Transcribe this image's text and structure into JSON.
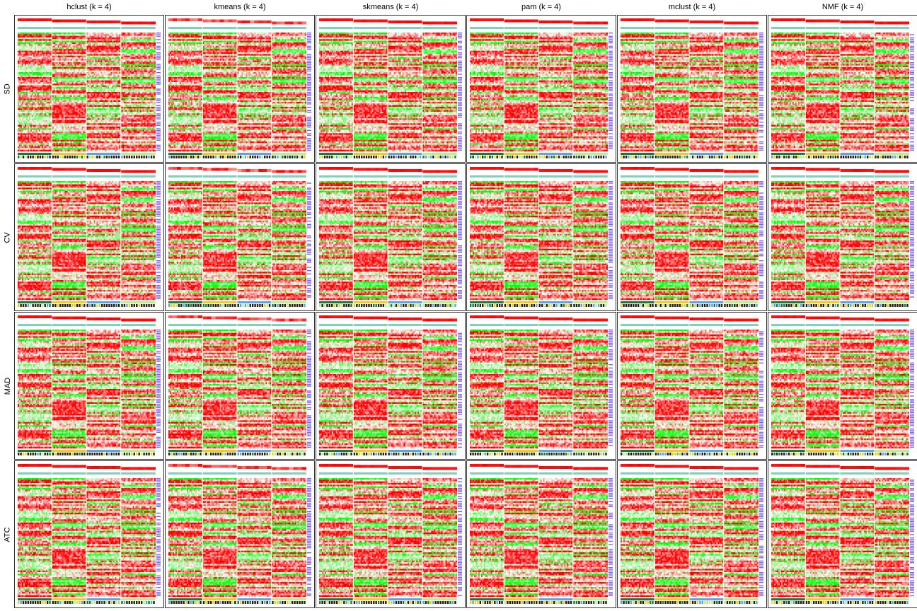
{
  "chart_data": {
    "type": "heatmap",
    "columns": [
      "hclust (k = 4)",
      "kmeans (k = 4)",
      "skmeans (k = 4)",
      "pam (k = 4)",
      "mclust (k = 4)",
      "NMF (k = 4)"
    ],
    "rows": [
      "SD",
      "CV",
      "MAD",
      "ATC"
    ],
    "k": 4,
    "colors": {
      "high": "#ff0000",
      "mid": "#ffffff",
      "low": "#00ff00",
      "membership": "#ff0000",
      "silhouette_top": "#7fd1b9",
      "row_annotation": "#7f5fff",
      "bottom_track_a": "#1a7a3c",
      "bottom_track_b": "#e6d21a",
      "bottom_track_c": "#5fa2e6",
      "bottom_track_d": "#b8f08c",
      "bottom_track_dark": "#2a1e12",
      "border": "#333333"
    },
    "legend": "none",
    "grid": false
  }
}
